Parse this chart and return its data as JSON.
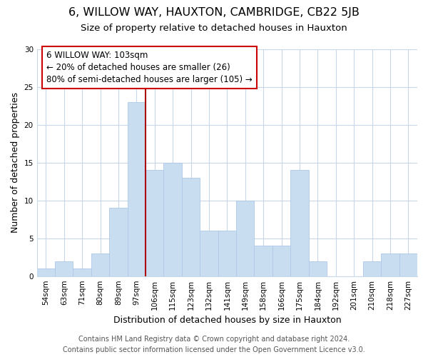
{
  "title": "6, WILLOW WAY, HAUXTON, CAMBRIDGE, CB22 5JB",
  "subtitle": "Size of property relative to detached houses in Hauxton",
  "xlabel": "Distribution of detached houses by size in Hauxton",
  "ylabel": "Number of detached properties",
  "categories": [
    "54sqm",
    "63sqm",
    "71sqm",
    "80sqm",
    "89sqm",
    "97sqm",
    "106sqm",
    "115sqm",
    "123sqm",
    "132sqm",
    "141sqm",
    "149sqm",
    "158sqm",
    "166sqm",
    "175sqm",
    "184sqm",
    "192sqm",
    "201sqm",
    "210sqm",
    "218sqm",
    "227sqm"
  ],
  "values": [
    1,
    2,
    1,
    3,
    9,
    23,
    14,
    15,
    13,
    6,
    6,
    10,
    4,
    4,
    14,
    2,
    0,
    0,
    2,
    3,
    3
  ],
  "bar_color": "#c9ddf0",
  "bar_edge_color": "#aec8e8",
  "highlight_line_color": "#aa0000",
  "highlight_line_index": 5,
  "annotation_line1": "6 WILLOW WAY: 103sqm",
  "annotation_line2": "← 20% of detached houses are smaller (26)",
  "annotation_line3": "80% of semi-detached houses are larger (105) →",
  "annotation_box_edge_color": "#cc0000",
  "ylim": [
    0,
    30
  ],
  "yticks": [
    0,
    5,
    10,
    15,
    20,
    25,
    30
  ],
  "footer_line1": "Contains HM Land Registry data © Crown copyright and database right 2024.",
  "footer_line2": "Contains public sector information licensed under the Open Government Licence v3.0.",
  "bg_color": "#ffffff",
  "grid_color": "#c8d8e8",
  "title_fontsize": 11.5,
  "subtitle_fontsize": 9.5,
  "axis_label_fontsize": 9,
  "tick_fontsize": 7.5,
  "annotation_fontsize": 8.5,
  "footer_fontsize": 7
}
